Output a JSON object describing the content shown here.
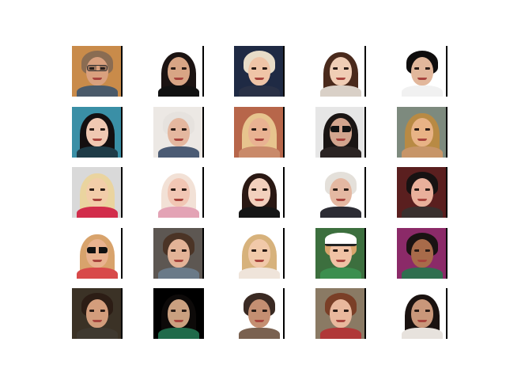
{
  "figure": {
    "rows": 5,
    "cols": 5,
    "tiles": [
      {
        "bg": "#c98b4a",
        "skin": "#d9a07e",
        "hair": "#8a6c52",
        "body": "#4a5a6a",
        "style": "short",
        "extra": "glasses-clear"
      },
      {
        "bg": "#ffffff",
        "skin": "#d8a585",
        "hair": "#1b1312",
        "body": "#111111",
        "style": "long",
        "extra": ""
      },
      {
        "bg": "#1f2a44",
        "skin": "#efc4a7",
        "hair": "#e8dcc8",
        "body": "#2a3146",
        "style": "short",
        "extra": ""
      },
      {
        "bg": "#ffffff",
        "skin": "#f0cdb5",
        "hair": "#4a2a1c",
        "body": "#d9d0c7",
        "style": "long",
        "extra": ""
      },
      {
        "bg": "#ffffff",
        "skin": "#e2b79b",
        "hair": "#0f0d0d",
        "body": "#f1f1f1",
        "style": "short",
        "extra": ""
      },
      {
        "bg": "#3a8fa6",
        "skin": "#f0c8b2",
        "hair": "#140f10",
        "body": "#1e3b47",
        "style": "long",
        "extra": ""
      },
      {
        "bg": "#ece8e4",
        "skin": "#e4b79f",
        "hair": "#e6e2de",
        "body": "#4b5b74",
        "style": "short",
        "extra": ""
      },
      {
        "bg": "#b7664a",
        "skin": "#e9b292",
        "hair": "#e7c48e",
        "body": "#c98a6a",
        "style": "long",
        "extra": ""
      },
      {
        "bg": "#e6e6e6",
        "skin": "#d3a58e",
        "hair": "#1a1514",
        "body": "#2b2423",
        "style": "long",
        "extra": "glasses-dark"
      },
      {
        "bg": "#7d8a7e",
        "skin": "#e8b386",
        "hair": "#b88a44",
        "body": "#c79568",
        "style": "long",
        "extra": ""
      },
      {
        "bg": "#d9d9d9",
        "skin": "#f2cda9",
        "hair": "#ead49f",
        "body": "#d22d4b",
        "style": "long",
        "extra": ""
      },
      {
        "bg": "#ffffff",
        "skin": "#f1c6b4",
        "hair": "#f2e1d6",
        "body": "#e3a3b5",
        "style": "long",
        "extra": ""
      },
      {
        "bg": "#ffffff",
        "skin": "#f2d0bd",
        "hair": "#2a1813",
        "body": "#161616",
        "style": "long",
        "extra": ""
      },
      {
        "bg": "#ffffff",
        "skin": "#e4b8a2",
        "hair": "#e4e0da",
        "body": "#2c2c34",
        "style": "short",
        "extra": ""
      },
      {
        "bg": "#5a1f1f",
        "skin": "#e9b09b",
        "hair": "#171212",
        "body": "#39302e",
        "style": "short",
        "extra": ""
      },
      {
        "bg": "#ffffff",
        "skin": "#e9b28f",
        "hair": "#d8a36c",
        "body": "#d84a4a",
        "style": "long",
        "extra": "glasses-dark"
      },
      {
        "bg": "#5d5752",
        "skin": "#e3b397",
        "hair": "#4b3426",
        "body": "#6a7a88",
        "style": "short",
        "extra": ""
      },
      {
        "bg": "#ffffff",
        "skin": "#f1c9a9",
        "hair": "#d7b27c",
        "body": "#efe4da",
        "style": "long",
        "extra": ""
      },
      {
        "bg": "#3c6f3e",
        "skin": "#f0c2a5",
        "hair": "#d8a56c",
        "body": "#3b8f4f",
        "style": "short",
        "extra": "cap"
      },
      {
        "bg": "#8b2a68",
        "skin": "#a86b4a",
        "hair": "#1a1313",
        "body": "#2f6f4f",
        "style": "short",
        "extra": ""
      },
      {
        "bg": "#3b3226",
        "skin": "#d39d7c",
        "hair": "#2c1d15",
        "body": "#3f3930",
        "style": "short",
        "extra": ""
      },
      {
        "bg": "#000000",
        "skin": "#caa080",
        "hair": "#0d0a09",
        "body": "#1f6a4a",
        "style": "long",
        "extra": ""
      },
      {
        "bg": "#ffffff",
        "skin": "#c48f72",
        "hair": "#3a2a23",
        "body": "#7a6150",
        "style": "short",
        "extra": ""
      },
      {
        "bg": "#8a7a64",
        "skin": "#e9b89d",
        "hair": "#7a3f27",
        "body": "#b03838",
        "style": "short",
        "extra": ""
      },
      {
        "bg": "#ffffff",
        "skin": "#c9977a",
        "hair": "#1a1210",
        "body": "#e7e2dd",
        "style": "long",
        "extra": ""
      }
    ]
  }
}
